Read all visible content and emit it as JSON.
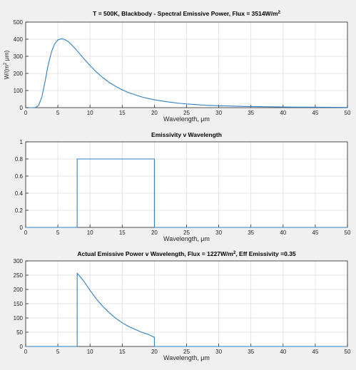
{
  "figure": {
    "background": "#f0f0f0"
  },
  "style": {
    "line_color": "#2f7fc1",
    "axes_color": "#262626",
    "grid_color": "#dcdcdc"
  },
  "chart_data": [
    {
      "type": "line",
      "title": "T = 500K, Blackbody - Spectral Emissive Power, Flux = 3514W/m",
      "title_sup": "2",
      "xlabel": "Wavelength, μm",
      "ylabel": "W/(m",
      "ylabel_sup": "2",
      "ylabel_tail": " μm)",
      "xlim": [
        0,
        50
      ],
      "ylim": [
        0,
        500
      ],
      "xticks": [
        0,
        5,
        10,
        15,
        20,
        25,
        30,
        35,
        40,
        45,
        50
      ],
      "yticks": [
        0,
        100,
        200,
        300,
        400,
        500
      ],
      "grid": true,
      "series": [
        {
          "x": [
            0.5,
            1,
            1.5,
            2,
            2.5,
            3,
            3.5,
            4,
            4.5,
            5,
            5.5,
            5.8,
            6,
            6.5,
            7,
            7.5,
            8,
            9,
            10,
            11,
            12,
            13,
            14,
            15,
            16,
            17,
            18,
            19,
            20,
            22,
            24,
            26,
            28,
            30,
            32,
            34,
            36,
            38,
            40,
            42,
            44,
            46,
            48,
            50
          ],
          "y": [
            0,
            0,
            1,
            12,
            60,
            150,
            250,
            325,
            372,
            396,
            402,
            401,
            399,
            389,
            373,
            353,
            332,
            288,
            246,
            208,
            175,
            147,
            124,
            104,
            88,
            75,
            63,
            54,
            46,
            34,
            25,
            19,
            14,
            11,
            9,
            7,
            6,
            5,
            4,
            3,
            2.7,
            2.2,
            1.8,
            1.5
          ]
        }
      ]
    },
    {
      "type": "line",
      "title": "Emissivity v Wavelength",
      "xlabel": "Wavelength, μm",
      "xlim": [
        0,
        50
      ],
      "ylim": [
        0,
        1
      ],
      "xticks": [
        0,
        5,
        10,
        15,
        20,
        25,
        30,
        35,
        40,
        45,
        50
      ],
      "yticks": [
        0,
        0.2,
        0.4,
        0.6,
        0.8,
        1
      ],
      "grid": true,
      "series": [
        {
          "x": [
            0,
            8,
            8,
            20,
            20,
            50
          ],
          "y": [
            0,
            0,
            0.8,
            0.8,
            0,
            0
          ]
        }
      ]
    },
    {
      "type": "line",
      "title": "Actual Emissive Power v Wavelength, Flux = 1227W/m",
      "title_sup": "2",
      "title_tail": ", Eff Emissivity =0.35",
      "xlabel": "Wavelength, μm",
      "xlim": [
        0,
        50
      ],
      "ylim": [
        0,
        300
      ],
      "xticks": [
        0,
        5,
        10,
        15,
        20,
        25,
        30,
        35,
        40,
        45,
        50
      ],
      "yticks": [
        0,
        50,
        100,
        150,
        200,
        250,
        300
      ],
      "grid": true,
      "series": [
        {
          "x": [
            0,
            8,
            8,
            9,
            10,
            11,
            12,
            13,
            14,
            15,
            16,
            17,
            18,
            19,
            20,
            20,
            50
          ],
          "y": [
            0,
            0,
            257,
            230,
            197,
            166,
            140,
            118,
            99,
            83,
            70,
            60,
            50,
            43,
            32,
            0,
            0
          ]
        }
      ]
    }
  ]
}
